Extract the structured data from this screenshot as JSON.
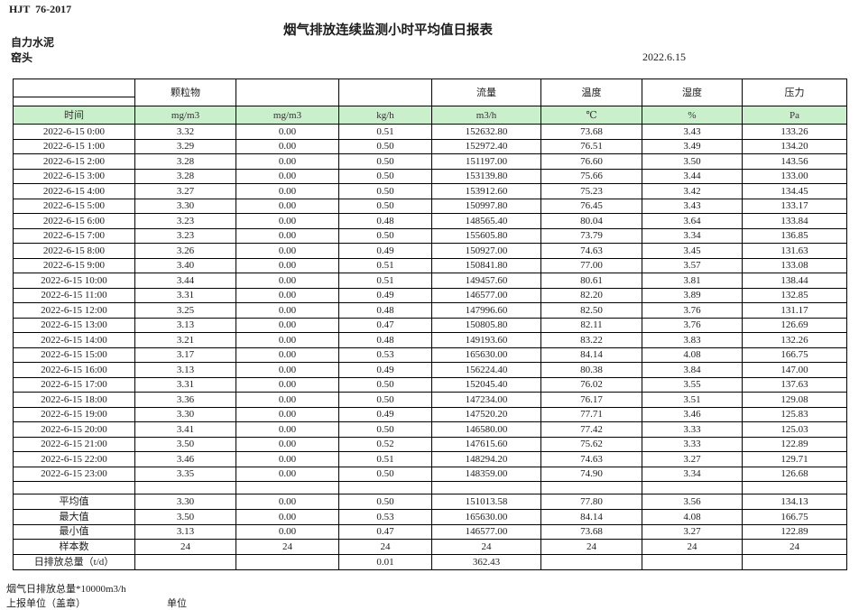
{
  "page": {
    "doc_code": "HJT  76-2017",
    "title": "烟气排放连续监测小时平均值日报表",
    "company": "自力水泥",
    "station": "窑头",
    "date": "2022.6.15"
  },
  "colors": {
    "unit_row_green": "#c9f0cb",
    "border": "#000000"
  },
  "table": {
    "group_headers": {
      "col1": "",
      "pm": "颗粒物",
      "col3": "",
      "col4": "",
      "flow": "流量",
      "temperature": "温度",
      "humidity": "湿度",
      "pressure": "压力"
    },
    "unit_row": [
      "时间",
      "mg/m3",
      "mg/m3",
      "kg/h",
      "m3/h",
      "℃",
      "%",
      "Pa"
    ],
    "rows": [
      [
        "2022-6-15 0:00",
        "3.32",
        "0.00",
        "0.51",
        "152632.80",
        "73.68",
        "3.43",
        "133.26"
      ],
      [
        "2022-6-15 1:00",
        "3.29",
        "0.00",
        "0.50",
        "152972.40",
        "76.51",
        "3.49",
        "134.20"
      ],
      [
        "2022-6-15 2:00",
        "3.28",
        "0.00",
        "0.50",
        "151197.00",
        "76.60",
        "3.50",
        "143.56"
      ],
      [
        "2022-6-15 3:00",
        "3.28",
        "0.00",
        "0.50",
        "153139.80",
        "75.66",
        "3.44",
        "133.00"
      ],
      [
        "2022-6-15 4:00",
        "3.27",
        "0.00",
        "0.50",
        "153912.60",
        "75.23",
        "3.42",
        "134.45"
      ],
      [
        "2022-6-15 5:00",
        "3.30",
        "0.00",
        "0.50",
        "150997.80",
        "76.45",
        "3.43",
        "133.17"
      ],
      [
        "2022-6-15 6:00",
        "3.23",
        "0.00",
        "0.48",
        "148565.40",
        "80.04",
        "3.64",
        "133.84"
      ],
      [
        "2022-6-15 7:00",
        "3.23",
        "0.00",
        "0.50",
        "155605.80",
        "73.79",
        "3.34",
        "136.85"
      ],
      [
        "2022-6-15 8:00",
        "3.26",
        "0.00",
        "0.49",
        "150927.00",
        "74.63",
        "3.45",
        "131.63"
      ],
      [
        "2022-6-15 9:00",
        "3.40",
        "0.00",
        "0.51",
        "150841.80",
        "77.00",
        "3.57",
        "133.08"
      ],
      [
        "2022-6-15 10:00",
        "3.44",
        "0.00",
        "0.51",
        "149457.60",
        "80.61",
        "3.81",
        "138.44"
      ],
      [
        "2022-6-15 11:00",
        "3.31",
        "0.00",
        "0.49",
        "146577.00",
        "82.20",
        "3.89",
        "132.85"
      ],
      [
        "2022-6-15 12:00",
        "3.25",
        "0.00",
        "0.48",
        "147996.60",
        "82.50",
        "3.76",
        "131.17"
      ],
      [
        "2022-6-15 13:00",
        "3.13",
        "0.00",
        "0.47",
        "150805.80",
        "82.11",
        "3.76",
        "126.69"
      ],
      [
        "2022-6-15 14:00",
        "3.21",
        "0.00",
        "0.48",
        "149193.60",
        "83.22",
        "3.83",
        "132.26"
      ],
      [
        "2022-6-15 15:00",
        "3.17",
        "0.00",
        "0.53",
        "165630.00",
        "84.14",
        "4.08",
        "166.75"
      ],
      [
        "2022-6-15 16:00",
        "3.13",
        "0.00",
        "0.49",
        "156224.40",
        "80.38",
        "3.84",
        "147.00"
      ],
      [
        "2022-6-15 17:00",
        "3.31",
        "0.00",
        "0.50",
        "152045.40",
        "76.02",
        "3.55",
        "137.63"
      ],
      [
        "2022-6-15 18:00",
        "3.36",
        "0.00",
        "0.50",
        "147234.00",
        "76.17",
        "3.51",
        "129.08"
      ],
      [
        "2022-6-15 19:00",
        "3.30",
        "0.00",
        "0.49",
        "147520.20",
        "77.71",
        "3.46",
        "125.83"
      ],
      [
        "2022-6-15 20:00",
        "3.41",
        "0.00",
        "0.50",
        "146580.00",
        "77.42",
        "3.33",
        "125.03"
      ],
      [
        "2022-6-15 21:00",
        "3.50",
        "0.00",
        "0.52",
        "147615.60",
        "75.62",
        "3.33",
        "122.89"
      ],
      [
        "2022-6-15 22:00",
        "3.46",
        "0.00",
        "0.51",
        "148294.20",
        "74.63",
        "3.27",
        "129.71"
      ],
      [
        "2022-6-15 23:00",
        "3.35",
        "0.00",
        "0.50",
        "148359.00",
        "74.90",
        "3.34",
        "126.68"
      ]
    ],
    "summary_rows": [
      [
        "平均值",
        "3.30",
        "0.00",
        "0.50",
        "151013.58",
        "77.80",
        "3.56",
        "134.13"
      ],
      [
        "最大值",
        "3.50",
        "0.00",
        "0.53",
        "165630.00",
        "84.14",
        "4.08",
        "166.75"
      ],
      [
        "最小值",
        "3.13",
        "0.00",
        "0.47",
        "146577.00",
        "73.68",
        "3.27",
        "122.89"
      ],
      [
        "样本数",
        "24",
        "24",
        "24",
        "24",
        "24",
        "24",
        "24"
      ],
      [
        "日排放总量（t/d）",
        "",
        "",
        "0.01",
        "362.43",
        "",
        "",
        ""
      ]
    ]
  },
  "footer": {
    "note": "烟气日排放总量*10000m3/h",
    "report_unit_label": "上报单位（盖章）",
    "unit_label": "单位"
  }
}
